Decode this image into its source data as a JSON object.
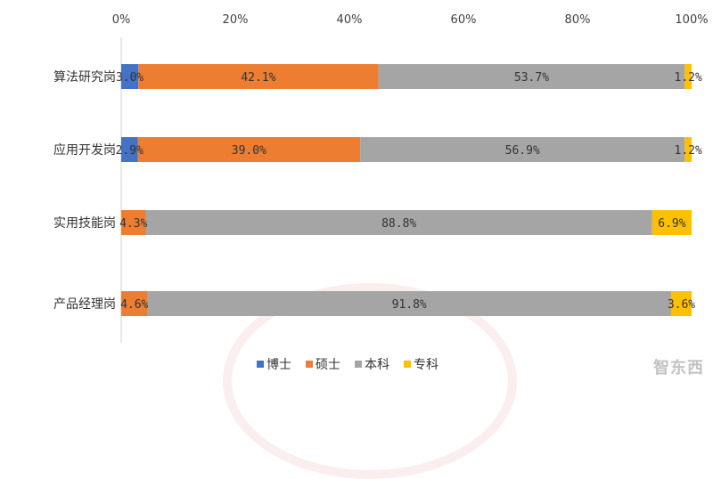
{
  "chart_data": {
    "type": "bar",
    "orientation": "horizontal",
    "stacked": true,
    "percent": true,
    "categories": [
      "算法研究岗",
      "应用开发岗",
      "实用技能岗",
      "产品经理岗"
    ],
    "series": [
      {
        "name": "博士",
        "color": "#4472C4",
        "values": [
          3.0,
          2.9,
          0,
          0
        ],
        "labels": [
          "3.0%",
          "2.9%",
          "",
          ""
        ]
      },
      {
        "name": "硕士",
        "color": "#ED7D31",
        "values": [
          42.1,
          39.0,
          4.3,
          4.6
        ],
        "labels": [
          "42.1%",
          "39.0%",
          "4.3%",
          "4.6%"
        ]
      },
      {
        "name": "本科",
        "color": "#A5A5A5",
        "values": [
          53.7,
          56.9,
          88.8,
          91.8
        ],
        "labels": [
          "53.7%",
          "56.9%",
          "88.8%",
          "91.8%"
        ]
      },
      {
        "name": "专科",
        "color": "#FFC000",
        "values": [
          1.2,
          1.2,
          6.9,
          3.6
        ],
        "labels": [
          "1.2%",
          "1.2%",
          "6.9%",
          "3.6%"
        ]
      }
    ],
    "x_ticks": [
      "0%",
      "20%",
      "40%",
      "60%",
      "80%",
      "100%"
    ],
    "xlim": [
      0,
      100
    ],
    "legend_position": "bottom",
    "grid": false
  },
  "watermark_text": "智东西"
}
